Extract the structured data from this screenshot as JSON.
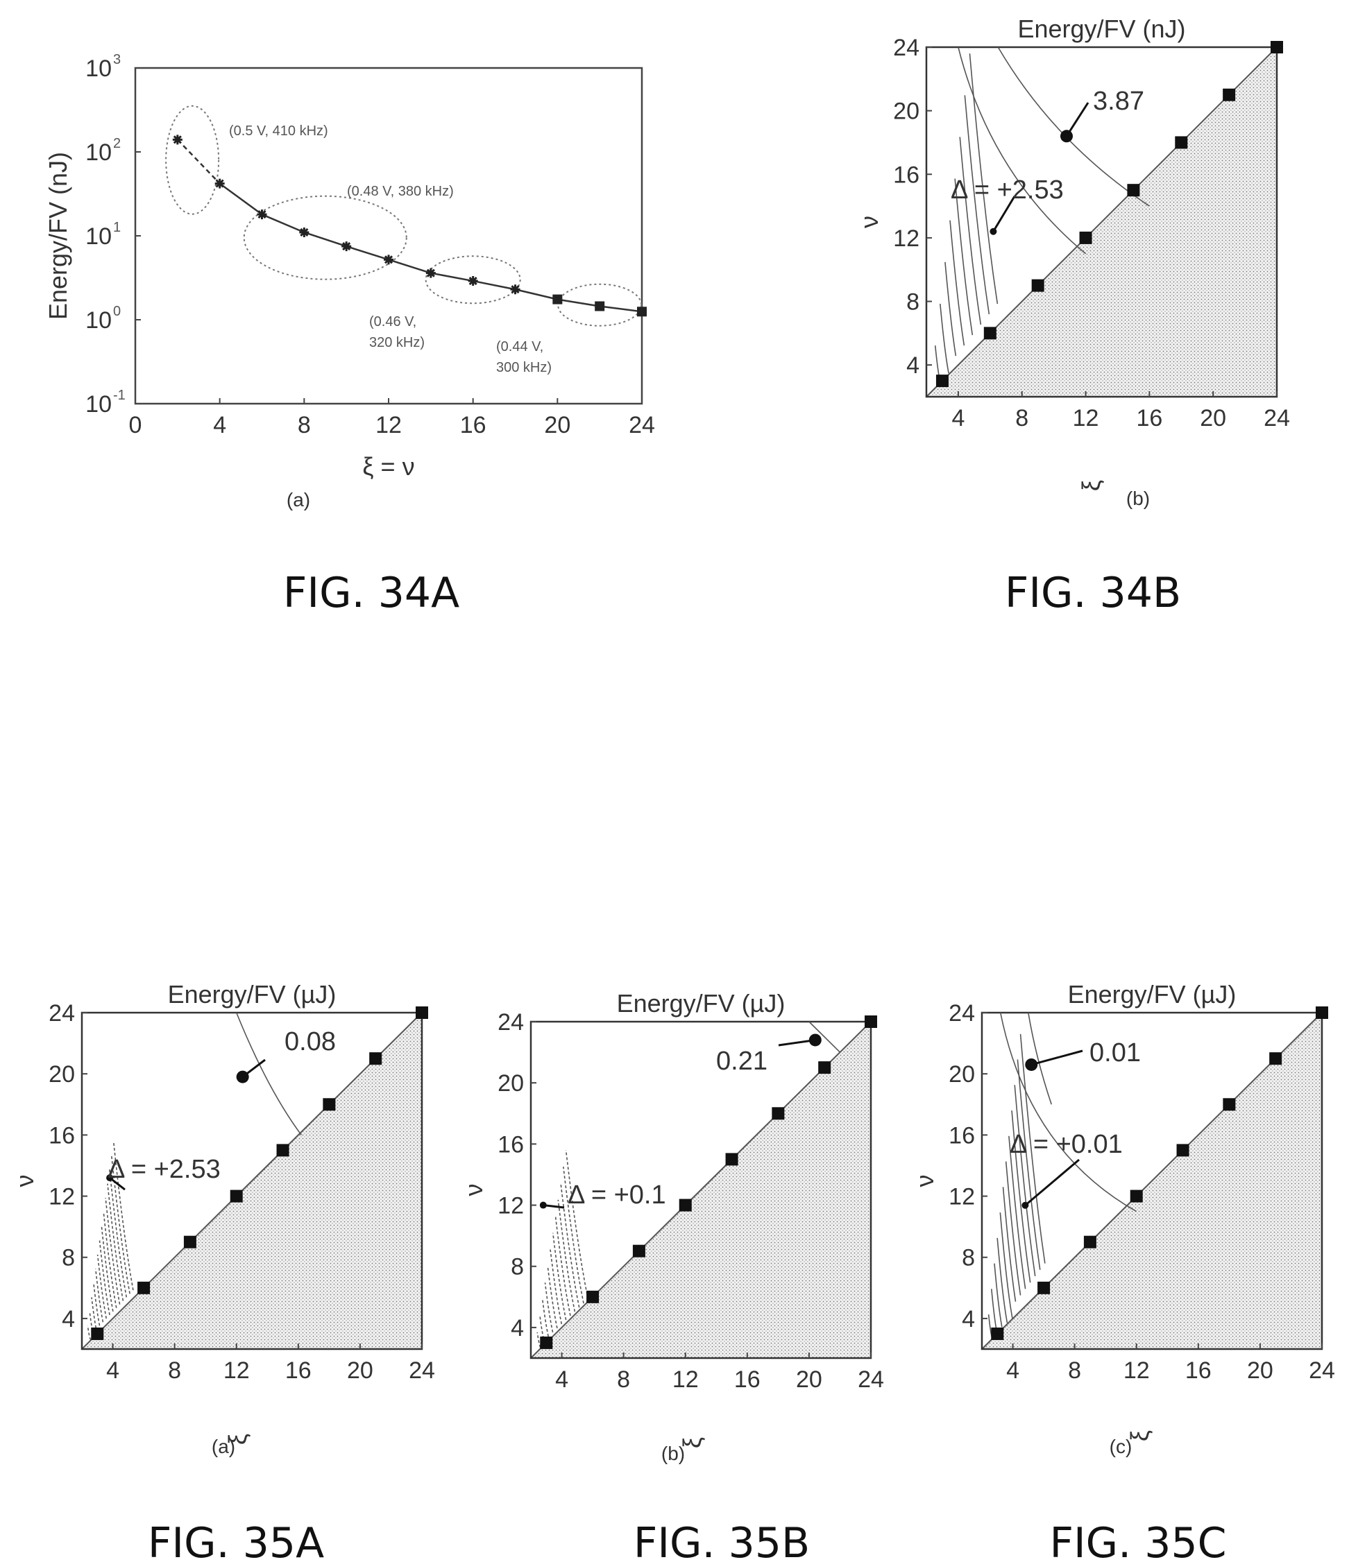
{
  "chart_data": [
    {
      "id": "fig34a",
      "type": "line",
      "caption": "FIG. 34A",
      "sublabel": "(a)",
      "xlabel": "ξ = ν",
      "ylabel": "Energy/FV (nJ)",
      "xlim": [
        0,
        24
      ],
      "ylim_log10": [
        -1,
        3
      ],
      "log_y": true,
      "x_ticks": [
        "0",
        "4",
        "8",
        "12",
        "16",
        "20",
        "24"
      ],
      "y_ticks": [
        {
          "base": "10",
          "exp": "3"
        },
        {
          "base": "10",
          "exp": "2"
        },
        {
          "base": "10",
          "exp": "1"
        },
        {
          "base": "10",
          "exp": "0"
        },
        {
          "base": "10",
          "exp": "-1"
        }
      ],
      "series": [
        {
          "x": [
            2,
            4,
            6,
            8,
            10,
            12,
            14,
            16,
            18,
            20,
            22,
            24
          ],
          "y": [
            140,
            42,
            18,
            11,
            7.5,
            5.2,
            3.6,
            2.9,
            2.3,
            1.75,
            1.45,
            1.25
          ]
        }
      ],
      "annotations": [
        {
          "text": "(0.5 V, 410 kHz)"
        },
        {
          "text": "(0.48 V, 380 kHz)"
        },
        {
          "text": "(0.46 V,",
          "text2": "320 kHz)"
        },
        {
          "text": "(0.44 V,",
          "text2": "300 kHz)"
        }
      ]
    },
    {
      "id": "fig34b",
      "type": "contour",
      "caption": "FIG. 34B",
      "sublabel": "(b)",
      "title": "Energy/FV (nJ)",
      "xlabel": "ξ",
      "ylabel": "ν",
      "xlim": [
        2,
        24
      ],
      "ylim": [
        2,
        24
      ],
      "x_ticks": [
        "4",
        "8",
        "12",
        "16",
        "20",
        "24"
      ],
      "y_ticks": [
        "4",
        "8",
        "12",
        "16",
        "20",
        "24"
      ],
      "markers": [
        [
          3,
          3
        ],
        [
          6,
          6
        ],
        [
          9,
          9
        ],
        [
          12,
          12
        ],
        [
          15,
          15
        ],
        [
          18,
          18
        ],
        [
          21,
          21
        ],
        [
          24,
          24
        ]
      ],
      "callouts": [
        {
          "text": "3.87",
          "point": [
            10.8,
            18.4
          ]
        },
        {
          "text": "Δ = +2.53",
          "point": [
            6.2,
            12.4
          ]
        }
      ]
    },
    {
      "id": "fig35a",
      "type": "contour",
      "caption": "FIG. 35A",
      "sublabel": "(a)",
      "title": "Energy/FV (µJ)",
      "xlabel": "ξ",
      "ylabel": "ν",
      "xlim": [
        2,
        24
      ],
      "ylim": [
        2,
        24
      ],
      "x_ticks": [
        "4",
        "8",
        "12",
        "16",
        "20",
        "24"
      ],
      "y_ticks": [
        "4",
        "8",
        "12",
        "16",
        "20",
        "24"
      ],
      "markers": [
        [
          3,
          3
        ],
        [
          6,
          6
        ],
        [
          9,
          9
        ],
        [
          12,
          12
        ],
        [
          15,
          15
        ],
        [
          18,
          18
        ],
        [
          21,
          21
        ],
        [
          24,
          24
        ]
      ],
      "callouts": [
        {
          "text": "0.08",
          "point": [
            12.4,
            19.8
          ]
        },
        {
          "text": "Δ = +2.53",
          "point": [
            3.8,
            13.2
          ]
        }
      ]
    },
    {
      "id": "fig35b",
      "type": "contour",
      "caption": "FIG. 35B",
      "sublabel": "(b)",
      "title": "Energy/FV (µJ)",
      "xlabel": "ξ",
      "ylabel": "ν",
      "xlim": [
        2,
        24
      ],
      "ylim": [
        2,
        24
      ],
      "x_ticks": [
        "4",
        "8",
        "12",
        "16",
        "20",
        "24"
      ],
      "y_ticks": [
        "4",
        "8",
        "12",
        "16",
        "20",
        "24"
      ],
      "markers": [
        [
          3,
          3
        ],
        [
          6,
          6
        ],
        [
          9,
          9
        ],
        [
          12,
          12
        ],
        [
          15,
          15
        ],
        [
          18,
          18
        ],
        [
          21,
          21
        ],
        [
          24,
          24
        ]
      ],
      "callouts": [
        {
          "text": "0.21",
          "point": [
            20.4,
            22.8
          ]
        },
        {
          "text": "Δ = +0.1",
          "point": [
            2.8,
            12.0
          ]
        }
      ]
    },
    {
      "id": "fig35c",
      "type": "contour",
      "caption": "FIG. 35C",
      "sublabel": "(c)",
      "title": "Energy/FV (µJ)",
      "xlabel": "ξ",
      "ylabel": "ν",
      "xlim": [
        2,
        24
      ],
      "ylim": [
        2,
        24
      ],
      "x_ticks": [
        "4",
        "8",
        "12",
        "16",
        "20",
        "24"
      ],
      "y_ticks": [
        "4",
        "8",
        "12",
        "16",
        "20",
        "24"
      ],
      "markers": [
        [
          3,
          3
        ],
        [
          6,
          6
        ],
        [
          9,
          9
        ],
        [
          12,
          12
        ],
        [
          15,
          15
        ],
        [
          18,
          18
        ],
        [
          21,
          21
        ],
        [
          24,
          24
        ]
      ],
      "callouts": [
        {
          "text": "0.01",
          "point": [
            5.2,
            20.6
          ]
        },
        {
          "text": "Δ = +0.01",
          "point": [
            4.8,
            11.4
          ]
        }
      ]
    }
  ]
}
